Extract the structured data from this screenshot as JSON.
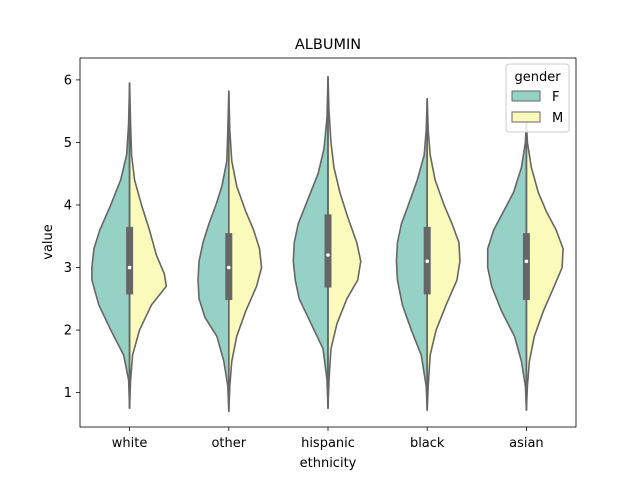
{
  "chart_data": {
    "type": "violin",
    "title": "ALBUMIN",
    "xlabel": "ethnicity",
    "ylabel": "value",
    "ylim": [
      0.45,
      6.35
    ],
    "yticks": [
      1,
      2,
      3,
      4,
      5,
      6
    ],
    "categories": [
      "white",
      "other",
      "hispanic",
      "black",
      "asian"
    ],
    "split": true,
    "legend": {
      "title": "gender",
      "position": "top-right",
      "entries": [
        {
          "label": "F",
          "color": "#96d1c6"
        },
        {
          "label": "M",
          "color": "#fafabb"
        }
      ]
    },
    "colors": {
      "F": "#96d1c6",
      "M": "#fafabb",
      "outline": "#666666",
      "box": "#666666",
      "median": "#ffffff"
    },
    "series": [
      {
        "name": "F",
        "violins": [
          {
            "min": 0.75,
            "max": 5.95,
            "profile": [
              [
                0.75,
                0.0
              ],
              [
                1.2,
                0.01
              ],
              [
                1.6,
                0.06
              ],
              [
                2.0,
                0.19
              ],
              [
                2.4,
                0.31
              ],
              [
                2.8,
                0.38
              ],
              [
                3.0,
                0.38
              ],
              [
                3.3,
                0.36
              ],
              [
                3.6,
                0.3
              ],
              [
                4.0,
                0.19
              ],
              [
                4.4,
                0.09
              ],
              [
                4.8,
                0.03
              ],
              [
                5.3,
                0.01
              ],
              [
                5.95,
                0.0
              ]
            ]
          },
          {
            "min": 0.7,
            "max": 5.82,
            "profile": [
              [
                0.7,
                0.0
              ],
              [
                1.1,
                0.01
              ],
              [
                1.5,
                0.05
              ],
              [
                1.9,
                0.12
              ],
              [
                2.2,
                0.24
              ],
              [
                2.5,
                0.3
              ],
              [
                2.8,
                0.31
              ],
              [
                3.1,
                0.3
              ],
              [
                3.4,
                0.26
              ],
              [
                3.7,
                0.2
              ],
              [
                4.0,
                0.13
              ],
              [
                4.3,
                0.07
              ],
              [
                4.7,
                0.02
              ],
              [
                5.2,
                0.01
              ],
              [
                5.82,
                0.0
              ]
            ]
          },
          {
            "min": 0.75,
            "max": 6.05,
            "profile": [
              [
                0.75,
                0.0
              ],
              [
                1.2,
                0.01
              ],
              [
                1.7,
                0.05
              ],
              [
                2.1,
                0.17
              ],
              [
                2.5,
                0.29
              ],
              [
                2.8,
                0.33
              ],
              [
                3.1,
                0.35
              ],
              [
                3.4,
                0.34
              ],
              [
                3.7,
                0.3
              ],
              [
                4.1,
                0.2
              ],
              [
                4.5,
                0.1
              ],
              [
                4.9,
                0.04
              ],
              [
                5.4,
                0.01
              ],
              [
                6.05,
                0.0
              ]
            ]
          },
          {
            "min": 0.72,
            "max": 5.7,
            "profile": [
              [
                0.72,
                0.0
              ],
              [
                1.1,
                0.01
              ],
              [
                1.6,
                0.06
              ],
              [
                2.0,
                0.16
              ],
              [
                2.4,
                0.25
              ],
              [
                2.8,
                0.3
              ],
              [
                3.1,
                0.31
              ],
              [
                3.4,
                0.3
              ],
              [
                3.7,
                0.26
              ],
              [
                4.0,
                0.19
              ],
              [
                4.4,
                0.1
              ],
              [
                4.8,
                0.03
              ],
              [
                5.2,
                0.01
              ],
              [
                5.7,
                0.0
              ]
            ]
          },
          {
            "min": 0.72,
            "max": 5.35,
            "profile": [
              [
                0.72,
                0.0
              ],
              [
                1.1,
                0.01
              ],
              [
                1.5,
                0.05
              ],
              [
                1.9,
                0.12
              ],
              [
                2.3,
                0.25
              ],
              [
                2.7,
                0.35
              ],
              [
                3.0,
                0.39
              ],
              [
                3.3,
                0.39
              ],
              [
                3.6,
                0.33
              ],
              [
                3.9,
                0.23
              ],
              [
                4.2,
                0.13
              ],
              [
                4.6,
                0.05
              ],
              [
                5.0,
                0.01
              ],
              [
                5.35,
                0.0
              ]
            ]
          }
        ]
      },
      {
        "name": "M",
        "violins": [
          {
            "min": 0.75,
            "max": 5.95,
            "profile": [
              [
                0.75,
                0.0
              ],
              [
                1.2,
                0.01
              ],
              [
                1.6,
                0.03
              ],
              [
                2.0,
                0.1
              ],
              [
                2.4,
                0.22
              ],
              [
                2.7,
                0.37
              ],
              [
                2.9,
                0.35
              ],
              [
                3.2,
                0.27
              ],
              [
                3.6,
                0.2
              ],
              [
                4.0,
                0.12
              ],
              [
                4.4,
                0.05
              ],
              [
                4.8,
                0.02
              ],
              [
                5.3,
                0.01
              ],
              [
                5.95,
                0.0
              ]
            ]
          },
          {
            "min": 0.7,
            "max": 5.82,
            "profile": [
              [
                0.7,
                0.0
              ],
              [
                1.1,
                0.01
              ],
              [
                1.5,
                0.03
              ],
              [
                1.9,
                0.08
              ],
              [
                2.3,
                0.17
              ],
              [
                2.7,
                0.28
              ],
              [
                3.0,
                0.33
              ],
              [
                3.3,
                0.31
              ],
              [
                3.6,
                0.25
              ],
              [
                3.9,
                0.17
              ],
              [
                4.3,
                0.08
              ],
              [
                4.7,
                0.03
              ],
              [
                5.2,
                0.01
              ],
              [
                5.82,
                0.0
              ]
            ]
          },
          {
            "min": 0.75,
            "max": 6.05,
            "profile": [
              [
                0.75,
                0.0
              ],
              [
                1.2,
                0.01
              ],
              [
                1.7,
                0.03
              ],
              [
                2.1,
                0.09
              ],
              [
                2.5,
                0.19
              ],
              [
                2.8,
                0.3
              ],
              [
                3.1,
                0.33
              ],
              [
                3.4,
                0.29
              ],
              [
                3.8,
                0.2
              ],
              [
                4.2,
                0.12
              ],
              [
                4.6,
                0.06
              ],
              [
                5.0,
                0.03
              ],
              [
                5.5,
                0.01
              ],
              [
                6.05,
                0.0
              ]
            ]
          },
          {
            "min": 0.72,
            "max": 5.7,
            "profile": [
              [
                0.72,
                0.0
              ],
              [
                1.1,
                0.01
              ],
              [
                1.6,
                0.03
              ],
              [
                2.0,
                0.09
              ],
              [
                2.4,
                0.19
              ],
              [
                2.8,
                0.3
              ],
              [
                3.1,
                0.33
              ],
              [
                3.4,
                0.32
              ],
              [
                3.7,
                0.25
              ],
              [
                4.0,
                0.17
              ],
              [
                4.4,
                0.08
              ],
              [
                4.8,
                0.03
              ],
              [
                5.2,
                0.01
              ],
              [
                5.7,
                0.0
              ]
            ]
          },
          {
            "min": 0.72,
            "max": 5.35,
            "profile": [
              [
                0.72,
                0.0
              ],
              [
                1.1,
                0.01
              ],
              [
                1.5,
                0.03
              ],
              [
                1.9,
                0.08
              ],
              [
                2.3,
                0.17
              ],
              [
                2.7,
                0.28
              ],
              [
                3.0,
                0.36
              ],
              [
                3.3,
                0.37
              ],
              [
                3.6,
                0.3
              ],
              [
                3.9,
                0.2
              ],
              [
                4.2,
                0.12
              ],
              [
                4.6,
                0.05
              ],
              [
                5.0,
                0.01
              ],
              [
                5.35,
                0.0
              ]
            ]
          }
        ]
      }
    ],
    "box": [
      {
        "q1": 2.57,
        "median": 3.0,
        "q3": 3.65
      },
      {
        "q1": 2.48,
        "median": 3.0,
        "q3": 3.55
      },
      {
        "q1": 2.68,
        "median": 3.2,
        "q3": 3.85
      },
      {
        "q1": 2.57,
        "median": 3.1,
        "q3": 3.65
      },
      {
        "q1": 2.48,
        "median": 3.1,
        "q3": 3.55
      }
    ]
  }
}
